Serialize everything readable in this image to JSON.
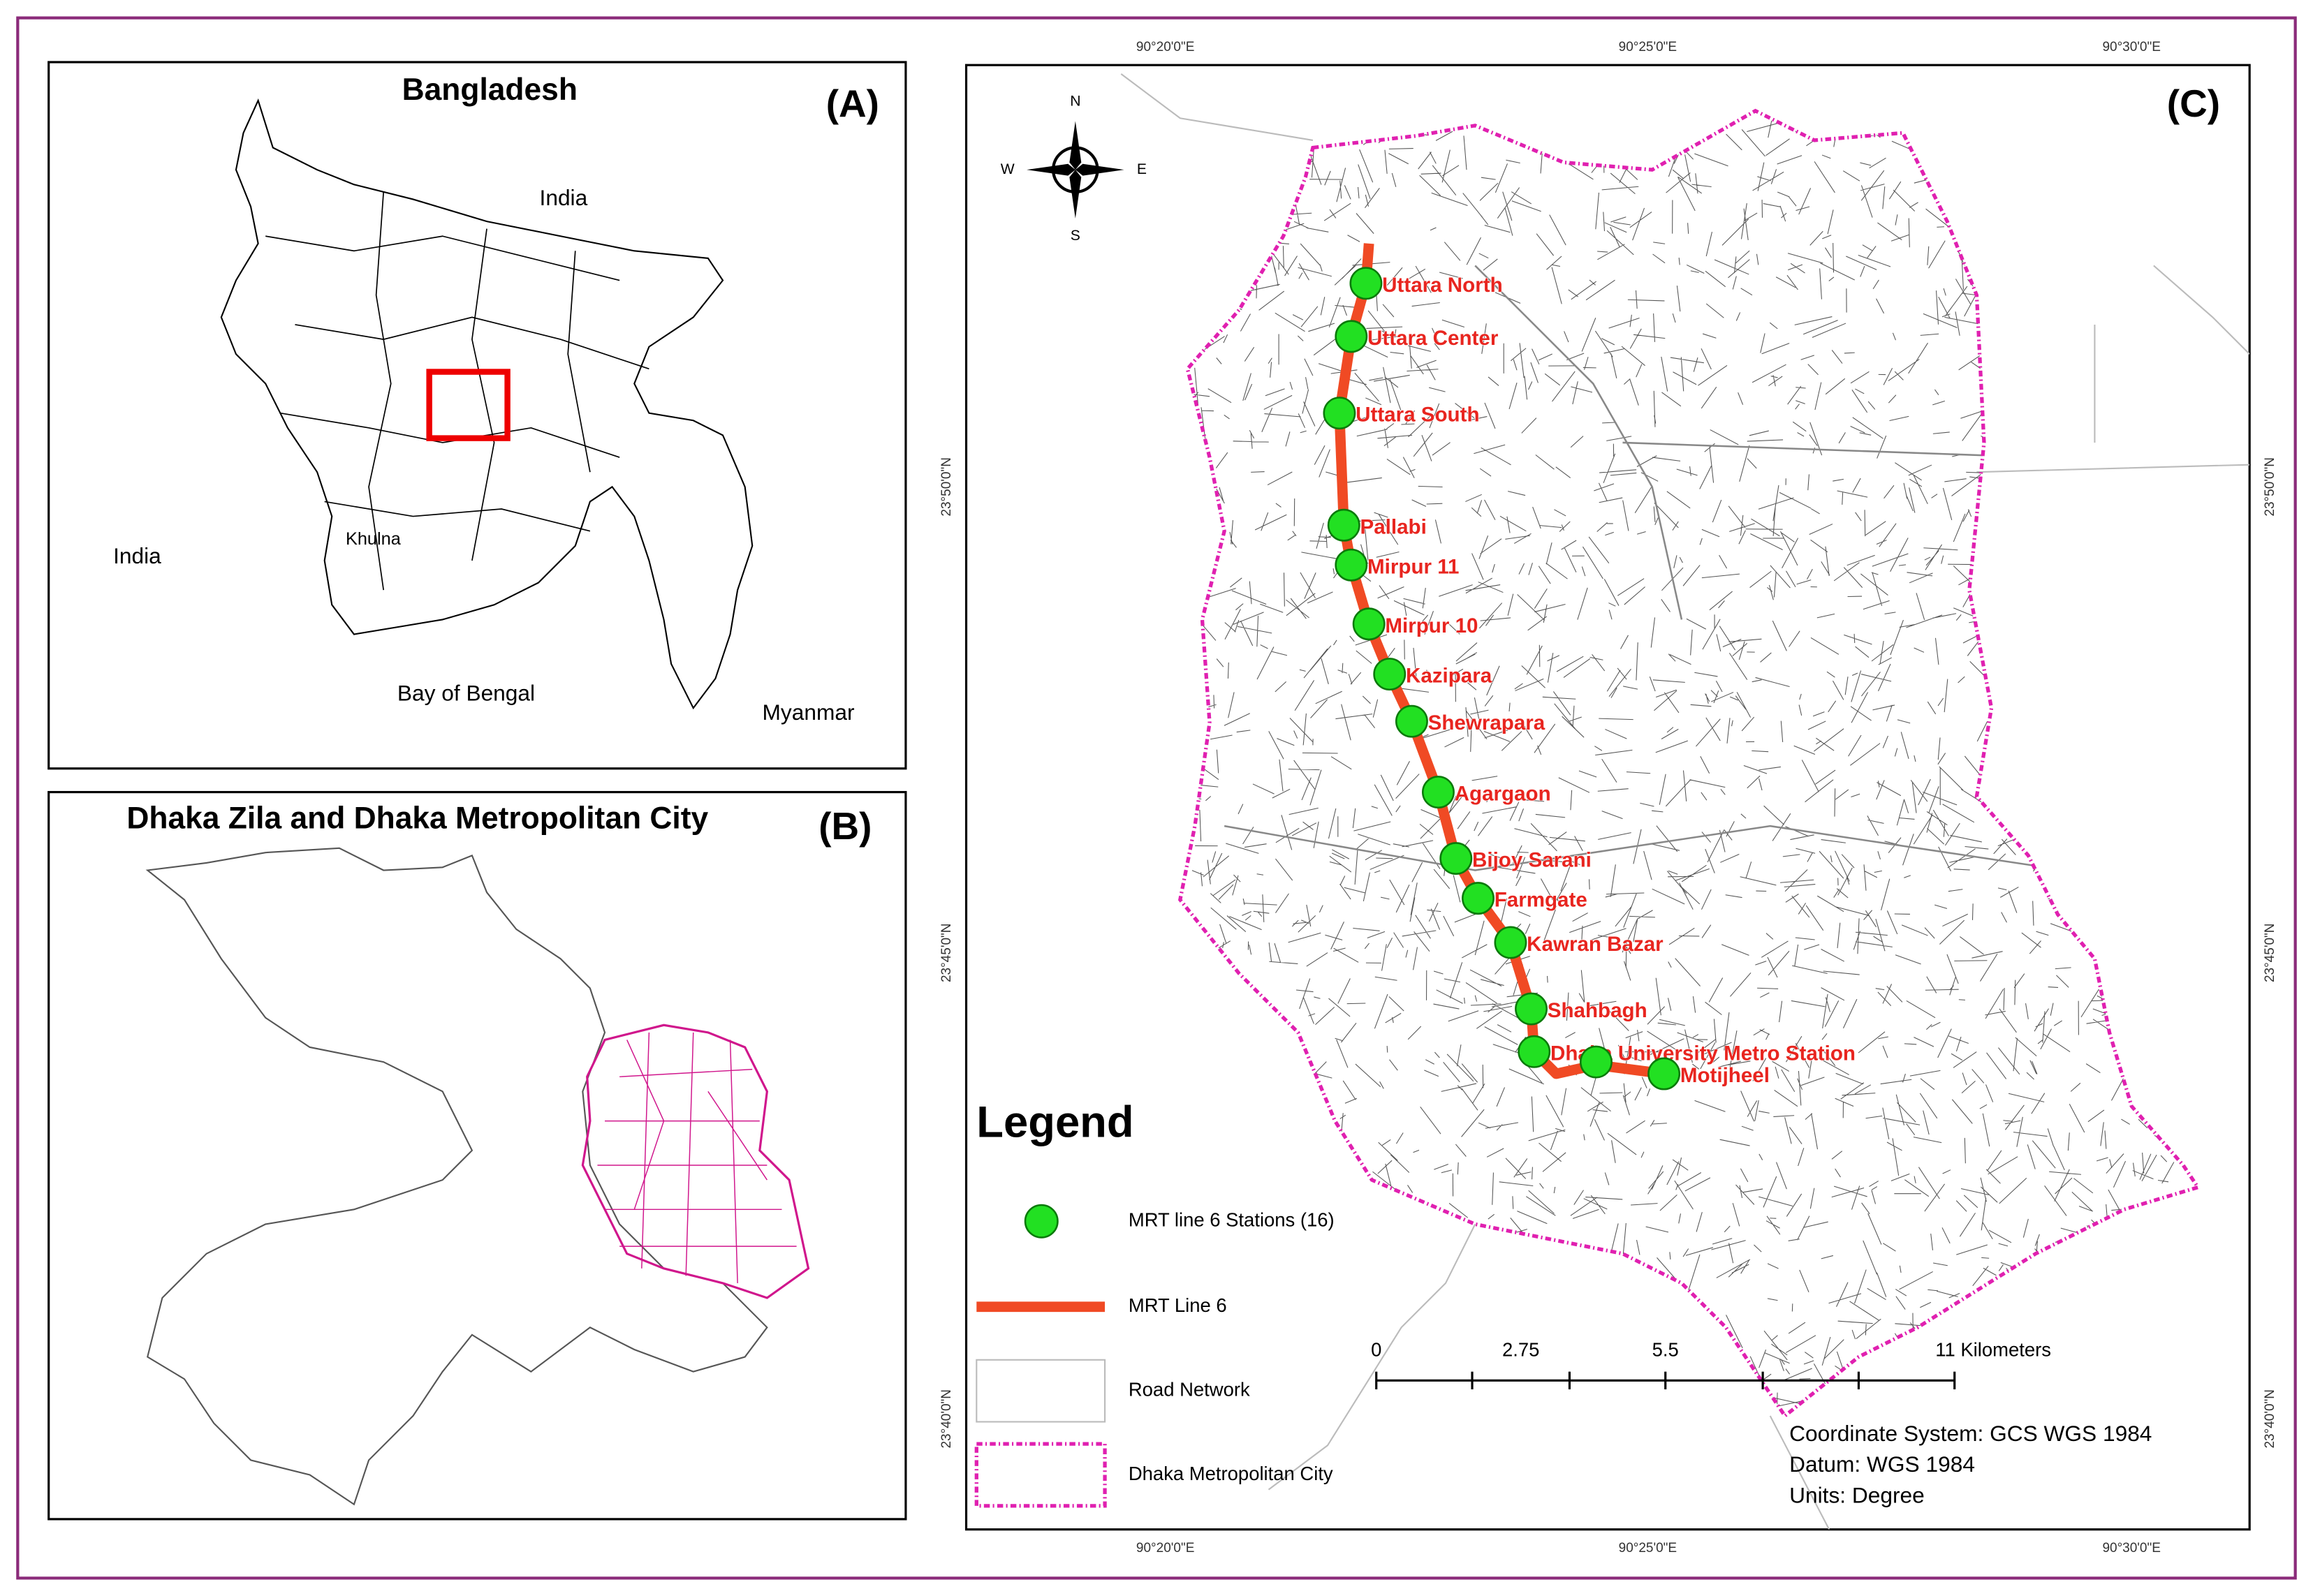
{
  "panel_a": {
    "title": "Bangladesh",
    "label": "(A)",
    "places": [
      "India",
      "India",
      "Khulna",
      "Bay of Bengal",
      "Myanmar"
    ]
  },
  "panel_b": {
    "title": "Dhaka Zila and Dhaka Metropolitan City",
    "label": "(B)"
  },
  "panel_c": {
    "label": "(C)",
    "compass": {
      "n": "N",
      "s": "S",
      "e": "E",
      "w": "W"
    },
    "longitudes": [
      "90°20'0\"E",
      "90°25'0\"E",
      "90°30'0\"E"
    ],
    "latitudes": [
      "23°50'0\"N",
      "23°45'0\"N",
      "23°40'0\"N"
    ],
    "stations": [
      "Uttara North",
      "Uttara Center",
      "Uttara South",
      "Pallabi",
      "Mirpur 11",
      "Mirpur 10",
      "Kazipara",
      "Shewrapara",
      "Agargaon",
      "Bijoy Sarani",
      "Farmgate",
      "Kawran Bazar",
      "Shahbagh",
      "Dhaka University Metro Station",
      null,
      "Motijheel"
    ],
    "legend": {
      "title": "Legend",
      "items": [
        "MRT line 6 Stations (16)",
        "MRT Line 6",
        "Road Network",
        "Dhaka Metropolitan City"
      ]
    },
    "scale_bar": [
      "0",
      "2.75",
      "5.5",
      "11 Kilometers"
    ],
    "info": [
      "Coordinate System: GCS WGS 1984",
      "Datum: WGS 1984",
      "Units: Degree"
    ]
  }
}
